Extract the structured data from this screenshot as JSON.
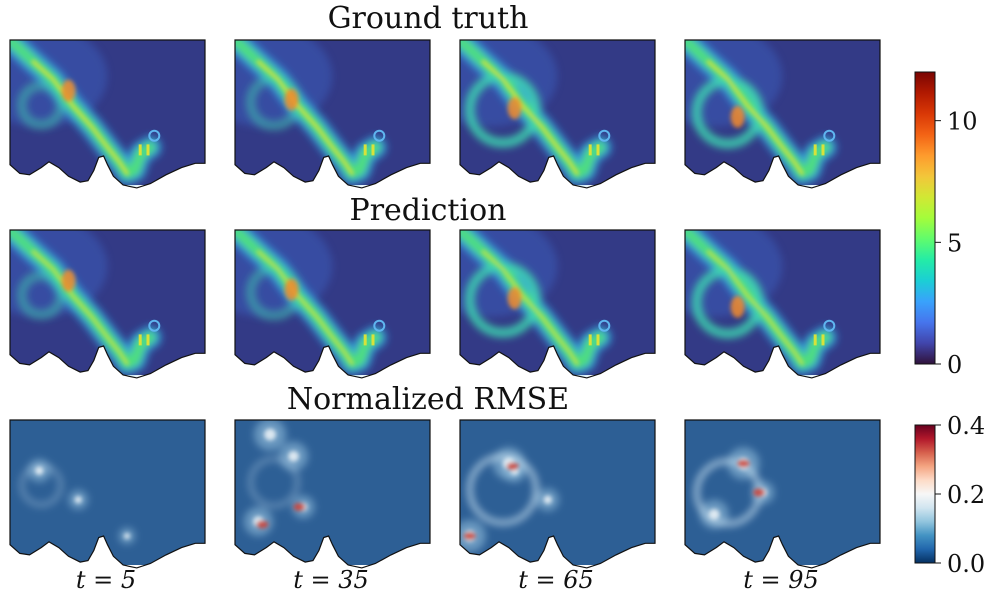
{
  "chart_data": {
    "type": "heatmap",
    "rows": [
      {
        "title": "Ground truth",
        "colorbar": "main"
      },
      {
        "title": "Prediction",
        "colorbar": "main"
      },
      {
        "title": "Normalized RMSE",
        "colorbar": "error"
      }
    ],
    "columns": [
      {
        "label": "t = 5",
        "t": 5
      },
      {
        "label": "t = 35",
        "t": 35
      },
      {
        "label": "t = 65",
        "t": 65
      },
      {
        "label": "t = 95",
        "t": 95
      }
    ],
    "colorbars": {
      "main": {
        "colormap": "turbo",
        "range": [
          0,
          12
        ],
        "ticks": [
          0,
          5,
          10
        ],
        "tick_labels": [
          "0",
          "5",
          "10"
        ]
      },
      "error": {
        "colormap": "RdBu_r",
        "range": [
          0.0,
          0.4
        ],
        "ticks": [
          0.0,
          0.2,
          0.4
        ],
        "tick_labels": [
          "0.0",
          "0.2",
          "0.4"
        ]
      }
    },
    "grid": false,
    "legend": "none"
  },
  "colors": {
    "background_main": "#333a86",
    "background_error": "#2d5f95",
    "outline": "#111111"
  }
}
